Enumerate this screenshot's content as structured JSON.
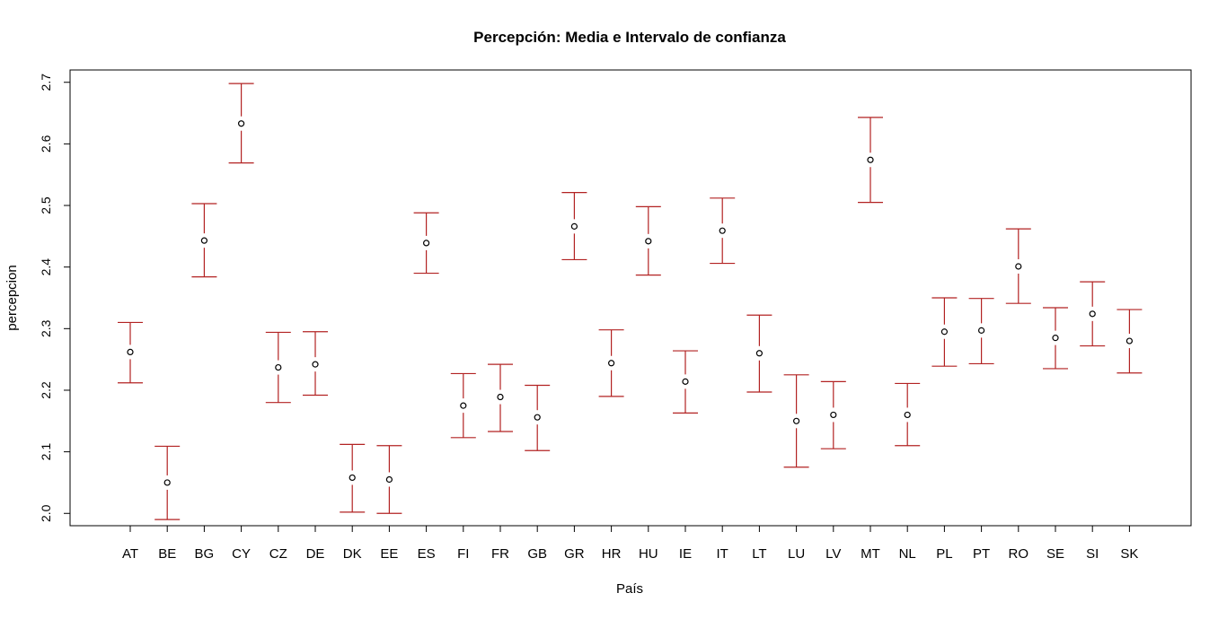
{
  "chart_data": {
    "type": "scatter",
    "title": "Percepción: Media e Intervalo de confianza",
    "xlabel": "País",
    "ylabel": "percepcion",
    "ylim": [
      1.98,
      2.72
    ],
    "yticks": [
      2.0,
      2.1,
      2.2,
      2.3,
      2.4,
      2.5,
      2.6,
      2.7
    ],
    "ytick_labels": [
      "2.0",
      "2.1",
      "2.2",
      "2.3",
      "2.4",
      "2.5",
      "2.6",
      "2.7"
    ],
    "grid": false,
    "categories": [
      "AT",
      "BE",
      "BG",
      "CY",
      "CZ",
      "DE",
      "DK",
      "EE",
      "ES",
      "FI",
      "FR",
      "GB",
      "GR",
      "HR",
      "HU",
      "IE",
      "IT",
      "LT",
      "LU",
      "LV",
      "MT",
      "NL",
      "PL",
      "PT",
      "RO",
      "SE",
      "SI",
      "SK"
    ],
    "series": [
      {
        "means": [
          2.262,
          2.05,
          2.443,
          2.633,
          2.237,
          2.242,
          2.058,
          2.055,
          2.439,
          2.175,
          2.189,
          2.156,
          2.466,
          2.244,
          2.442,
          2.214,
          2.459,
          2.26,
          2.15,
          2.16,
          2.574,
          2.16,
          2.295,
          2.297,
          2.401,
          2.285,
          2.324,
          2.28
        ],
        "lower": [
          2.212,
          1.99,
          2.384,
          2.569,
          2.18,
          2.192,
          2.002,
          2.0,
          2.39,
          2.123,
          2.133,
          2.102,
          2.412,
          2.19,
          2.387,
          2.163,
          2.406,
          2.197,
          2.075,
          2.105,
          2.505,
          2.11,
          2.239,
          2.243,
          2.341,
          2.235,
          2.272,
          2.228
        ],
        "upper": [
          2.31,
          2.109,
          2.503,
          2.698,
          2.294,
          2.295,
          2.112,
          2.11,
          2.488,
          2.227,
          2.242,
          2.208,
          2.521,
          2.298,
          2.498,
          2.264,
          2.512,
          2.322,
          2.225,
          2.214,
          2.643,
          2.211,
          2.35,
          2.349,
          2.462,
          2.334,
          2.376,
          2.331
        ]
      }
    ],
    "colors": {
      "error_bar": "#b22222",
      "point_edge": "#000000",
      "point_fill": "#ffffff",
      "axis": "#000000"
    }
  }
}
